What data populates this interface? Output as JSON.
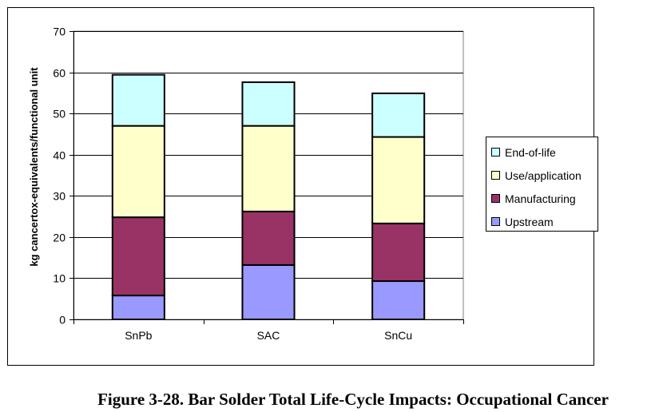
{
  "chart_data": {
    "type": "stacked-bar",
    "title": "",
    "xlabel": "",
    "ylabel": "kg cancertox-equivalents/functional unit",
    "ylim": [
      0,
      70
    ],
    "yticks": [
      0,
      10,
      20,
      30,
      40,
      50,
      60,
      70
    ],
    "grid": true,
    "categories": [
      "SnPb",
      "SAC",
      "SnCu"
    ],
    "series": [
      {
        "name": "Upstream",
        "color": "#9999ff",
        "values": [
          5.8,
          13.2,
          9.3
        ]
      },
      {
        "name": "Manufacturing",
        "color": "#993366",
        "values": [
          19.0,
          13.0,
          14.0
        ]
      },
      {
        "name": "Use/application",
        "color": "#ffffcc",
        "values": [
          22.2,
          20.8,
          21.0
        ]
      },
      {
        "name": "End-of-life",
        "color": "#ccffff",
        "values": [
          12.4,
          10.6,
          10.6
        ]
      }
    ],
    "legend_position": "right",
    "legend_order": [
      "End-of-life",
      "Use/application",
      "Manufacturing",
      "Upstream"
    ]
  },
  "caption": "Figure 3-28.  Bar Solder Total Life-Cycle Impacts: Occupational Cancer"
}
